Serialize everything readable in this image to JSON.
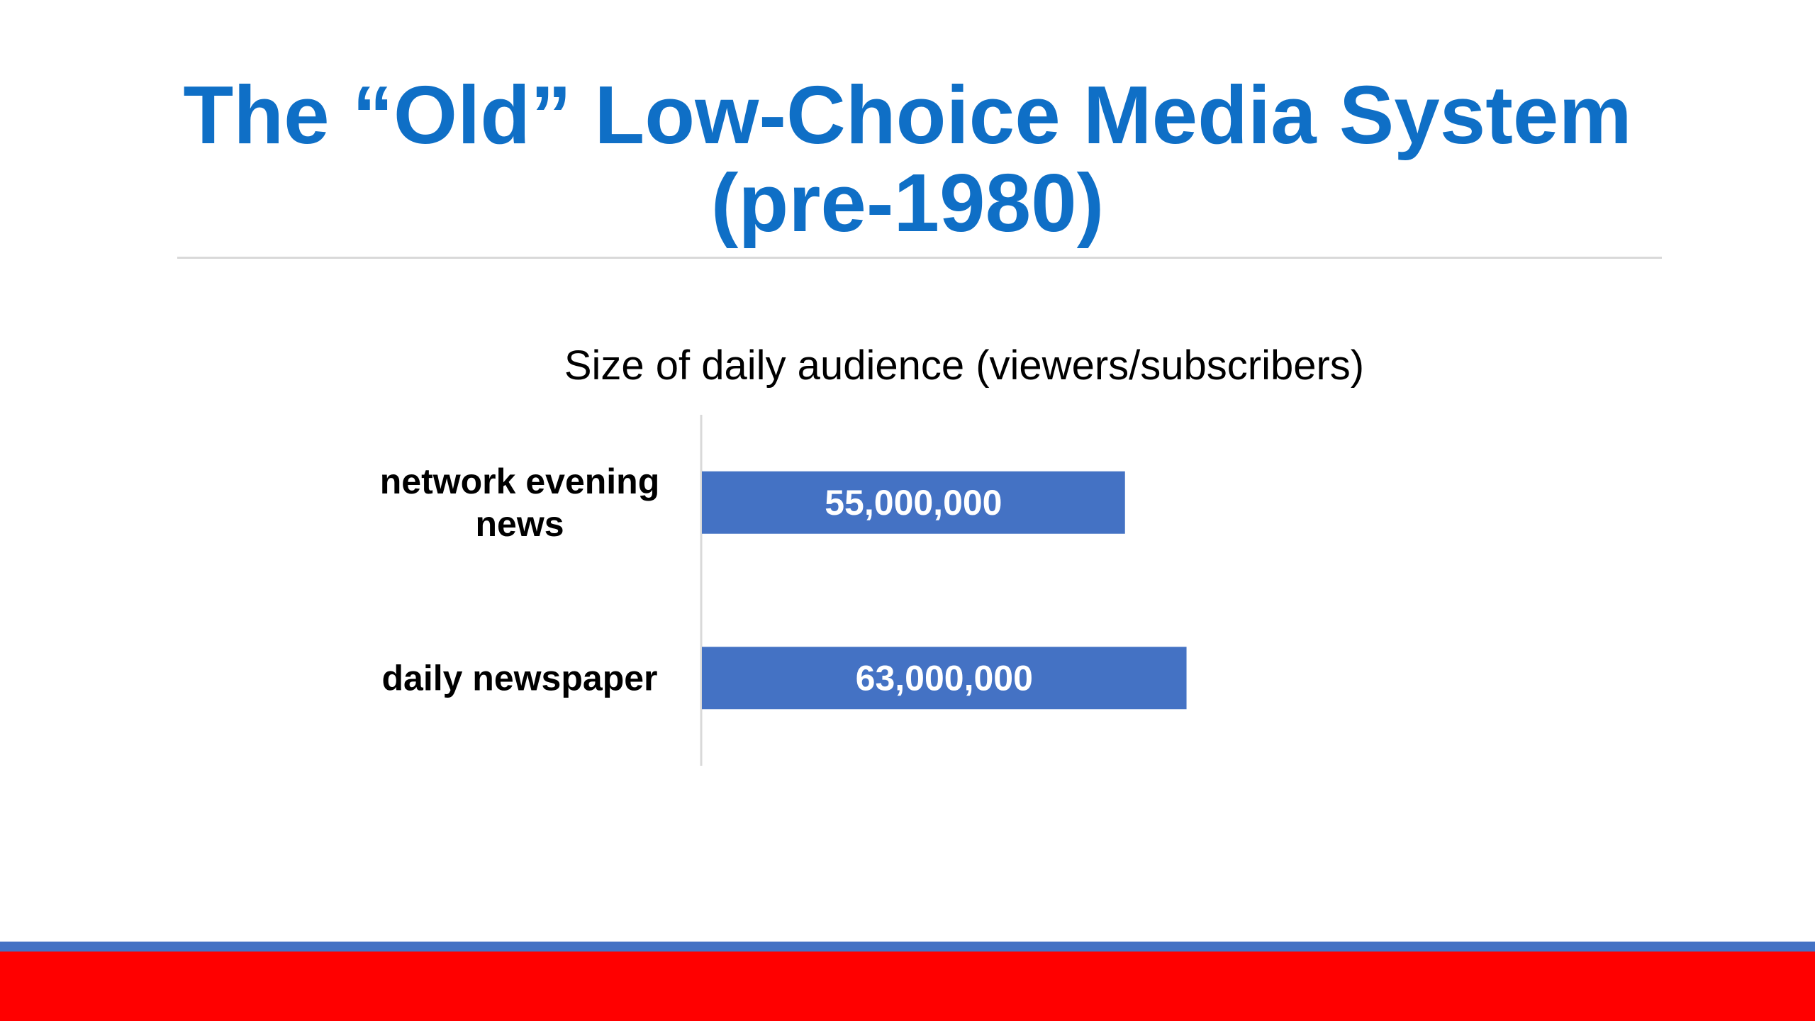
{
  "slide": {
    "title_line1": "The “Old” Low-Choice Media System",
    "title_line2": "(pre-1980)"
  },
  "colors": {
    "title": "#0F6FC6",
    "bar": "#4472C4",
    "rule": "#d9d9d9",
    "footer_stripe": "#4472C4",
    "footer_band": "#FF0000"
  },
  "chart_data": {
    "type": "bar",
    "orientation": "horizontal",
    "title": "Size of daily audience (viewers/subscribers)",
    "categories": [
      "network evening news",
      "daily newspaper"
    ],
    "category_lines": [
      [
        "network evening",
        "news"
      ],
      [
        "daily newspaper"
      ]
    ],
    "values": [
      55000000,
      63000000
    ],
    "data_labels": [
      "55,000,000",
      "63,000,000"
    ],
    "xlim": [
      0,
      100000000
    ],
    "grid": false,
    "legend": "none"
  }
}
